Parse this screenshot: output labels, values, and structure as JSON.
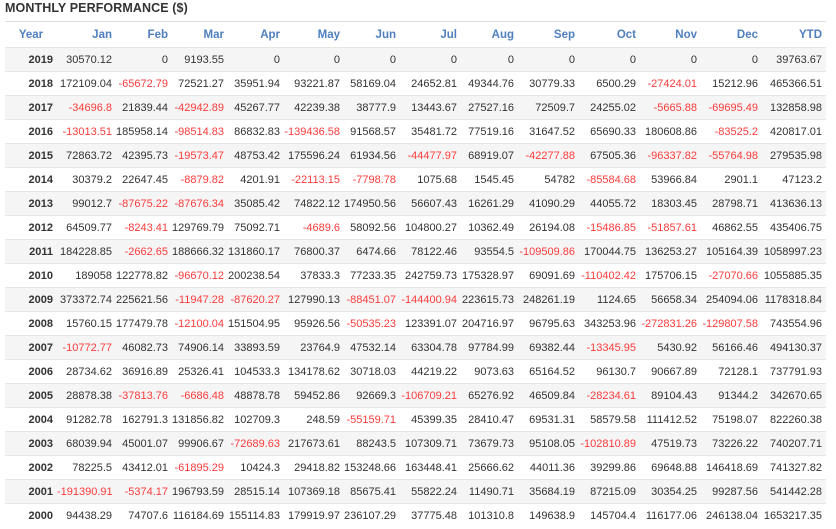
{
  "title": "MONTHLY PERFORMANCE ($)",
  "colors": {
    "header": "#4f7fbf",
    "negative": "#ff3b3b",
    "alt_row": "#f5f5f5"
  },
  "columns": [
    "Year",
    "Jan",
    "Feb",
    "Mar",
    "Apr",
    "May",
    "Jun",
    "Jul",
    "Aug",
    "Sep",
    "Oct",
    "Nov",
    "Dec",
    "YTD"
  ],
  "rows": [
    [
      "2019",
      "30570.12",
      "0",
      "9193.55",
      "0",
      "0",
      "0",
      "0",
      "0",
      "0",
      "0",
      "0",
      "0",
      "39763.67"
    ],
    [
      "2018",
      "172109.04",
      "-65672.79",
      "72521.27",
      "35951.94",
      "93221.87",
      "58169.04",
      "24652.81",
      "49344.76",
      "30779.33",
      "6500.29",
      "-27424.01",
      "15212.96",
      "465366.51"
    ],
    [
      "2017",
      "-34696.8",
      "21839.44",
      "-42942.89",
      "45267.77",
      "42239.38",
      "38777.9",
      "13443.67",
      "27527.16",
      "72509.7",
      "24255.02",
      "-5665.88",
      "-69695.49",
      "132858.98"
    ],
    [
      "2016",
      "-13013.51",
      "185958.14",
      "-98514.83",
      "86832.83",
      "-139436.58",
      "91568.57",
      "35481.72",
      "77519.16",
      "31647.52",
      "65690.33",
      "180608.86",
      "-83525.2",
      "420817.01"
    ],
    [
      "2015",
      "72863.72",
      "42395.73",
      "-19573.47",
      "48753.42",
      "175596.24",
      "61934.56",
      "-44477.97",
      "68919.07",
      "-42277.88",
      "67505.36",
      "-96337.82",
      "-55764.98",
      "279535.98"
    ],
    [
      "2014",
      "30379.2",
      "22647.45",
      "-8879.82",
      "4201.91",
      "-22113.15",
      "-7798.78",
      "1075.68",
      "1545.45",
      "54782",
      "-85584.68",
      "53966.84",
      "2901.1",
      "47123.2"
    ],
    [
      "2013",
      "99012.7",
      "-87675.22",
      "-87676.34",
      "35085.42",
      "74822.12",
      "174950.56",
      "56607.43",
      "16261.29",
      "41090.29",
      "44055.72",
      "18303.45",
      "28798.71",
      "413636.13"
    ],
    [
      "2012",
      "64509.77",
      "-8243.41",
      "129769.79",
      "75092.71",
      "-4689.6",
      "58092.56",
      "104800.27",
      "10362.49",
      "26194.08",
      "-15486.85",
      "-51857.61",
      "46862.55",
      "435406.75"
    ],
    [
      "2011",
      "184228.85",
      "-2662.65",
      "188666.32",
      "131860.17",
      "76800.37",
      "6474.66",
      "78122.46",
      "93554.5",
      "-109509.86",
      "170044.75",
      "136253.27",
      "105164.39",
      "1058997.23"
    ],
    [
      "2010",
      "189058",
      "122778.82",
      "-96670.12",
      "200238.54",
      "37833.3",
      "77233.35",
      "242759.73",
      "175328.97",
      "69091.69",
      "-110402.42",
      "175706.15",
      "-27070.66",
      "1055885.35"
    ],
    [
      "2009",
      "373372.74",
      "225621.56",
      "-11947.28",
      "-87620.27",
      "127990.13",
      "-88451.07",
      "-144400.94",
      "223615.73",
      "248261.19",
      "1124.65",
      "56658.34",
      "254094.06",
      "1178318.84"
    ],
    [
      "2008",
      "15760.15",
      "177479.78",
      "-12100.04",
      "151504.95",
      "95926.56",
      "-50535.23",
      "123391.07",
      "204716.97",
      "96795.63",
      "343253.96",
      "-272831.26",
      "-129807.58",
      "743554.96"
    ],
    [
      "2007",
      "-10772.77",
      "46082.73",
      "74906.14",
      "33893.59",
      "23764.9",
      "47532.14",
      "63304.78",
      "97784.99",
      "69382.44",
      "-13345.95",
      "5430.92",
      "56166.46",
      "494130.37"
    ],
    [
      "2006",
      "28734.62",
      "36916.89",
      "25326.41",
      "104533.3",
      "134178.62",
      "30718.03",
      "44219.22",
      "9073.63",
      "65164.52",
      "96130.7",
      "90667.89",
      "72128.1",
      "737791.93"
    ],
    [
      "2005",
      "28878.38",
      "-37813.76",
      "-6686.48",
      "48878.78",
      "59452.86",
      "92669.3",
      "-106709.21",
      "65276.92",
      "46509.84",
      "-28234.61",
      "89104.43",
      "91344.2",
      "342670.65"
    ],
    [
      "2004",
      "91282.78",
      "162791.3",
      "131856.82",
      "102709.3",
      "248.59",
      "-55159.71",
      "45399.35",
      "28410.47",
      "69531.31",
      "58579.58",
      "111412.52",
      "75198.07",
      "822260.38"
    ],
    [
      "2003",
      "68039.94",
      "45001.07",
      "99906.67",
      "-72689.63",
      "217673.61",
      "88243.5",
      "107309.71",
      "73679.73",
      "95108.05",
      "-102810.89",
      "47519.73",
      "73226.22",
      "740207.71"
    ],
    [
      "2002",
      "78225.5",
      "43412.01",
      "-61895.29",
      "10424.3",
      "29418.82",
      "153248.66",
      "163448.41",
      "25666.62",
      "44011.36",
      "39299.86",
      "69648.88",
      "146418.69",
      "741327.82"
    ],
    [
      "2001",
      "-191390.91",
      "-5374.17",
      "196793.59",
      "28515.14",
      "107369.18",
      "85675.41",
      "55822.24",
      "11490.71",
      "35684.19",
      "87215.09",
      "30354.25",
      "99287.56",
      "541442.28"
    ],
    [
      "2000",
      "94438.29",
      "74707.6",
      "116184.69",
      "155114.83",
      "179919.97",
      "236107.29",
      "37775.48",
      "101310.8",
      "149638.9",
      "145704.4",
      "116177.06",
      "246138.04",
      "1653217.35"
    ]
  ]
}
